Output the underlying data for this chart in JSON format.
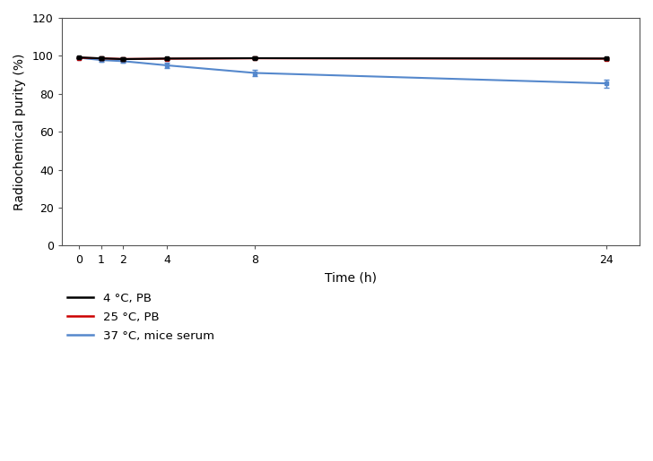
{
  "time": [
    0,
    1,
    2,
    4,
    8,
    24
  ],
  "series": [
    {
      "label": "4 °C, PB",
      "color": "#000000",
      "y": [
        99.2,
        98.7,
        98.3,
        98.6,
        98.8,
        98.6
      ],
      "yerr": [
        0.4,
        0.8,
        1.0,
        0.7,
        0.7,
        0.7
      ]
    },
    {
      "label": "25 °C, PB",
      "color": "#cc0000",
      "y": [
        99.0,
        98.7,
        98.4,
        98.5,
        98.7,
        98.5
      ],
      "yerr": [
        0.3,
        0.4,
        0.4,
        0.4,
        0.4,
        0.4
      ]
    },
    {
      "label": "37 °C, mice serum",
      "color": "#5588cc",
      "y": [
        99.0,
        97.8,
        97.2,
        95.0,
        91.0,
        85.5
      ],
      "yerr": [
        0.4,
        0.8,
        1.0,
        1.2,
        1.8,
        2.2
      ]
    }
  ],
  "xlabel": "Time (h)",
  "ylabel": "Radiochemical purity (%)",
  "xlim": [
    -0.8,
    25.5
  ],
  "ylim": [
    0,
    120
  ],
  "yticks": [
    0,
    20,
    40,
    60,
    80,
    100,
    120
  ],
  "xticks": [
    0,
    1,
    2,
    4,
    8,
    24
  ],
  "background_color": "#ffffff"
}
